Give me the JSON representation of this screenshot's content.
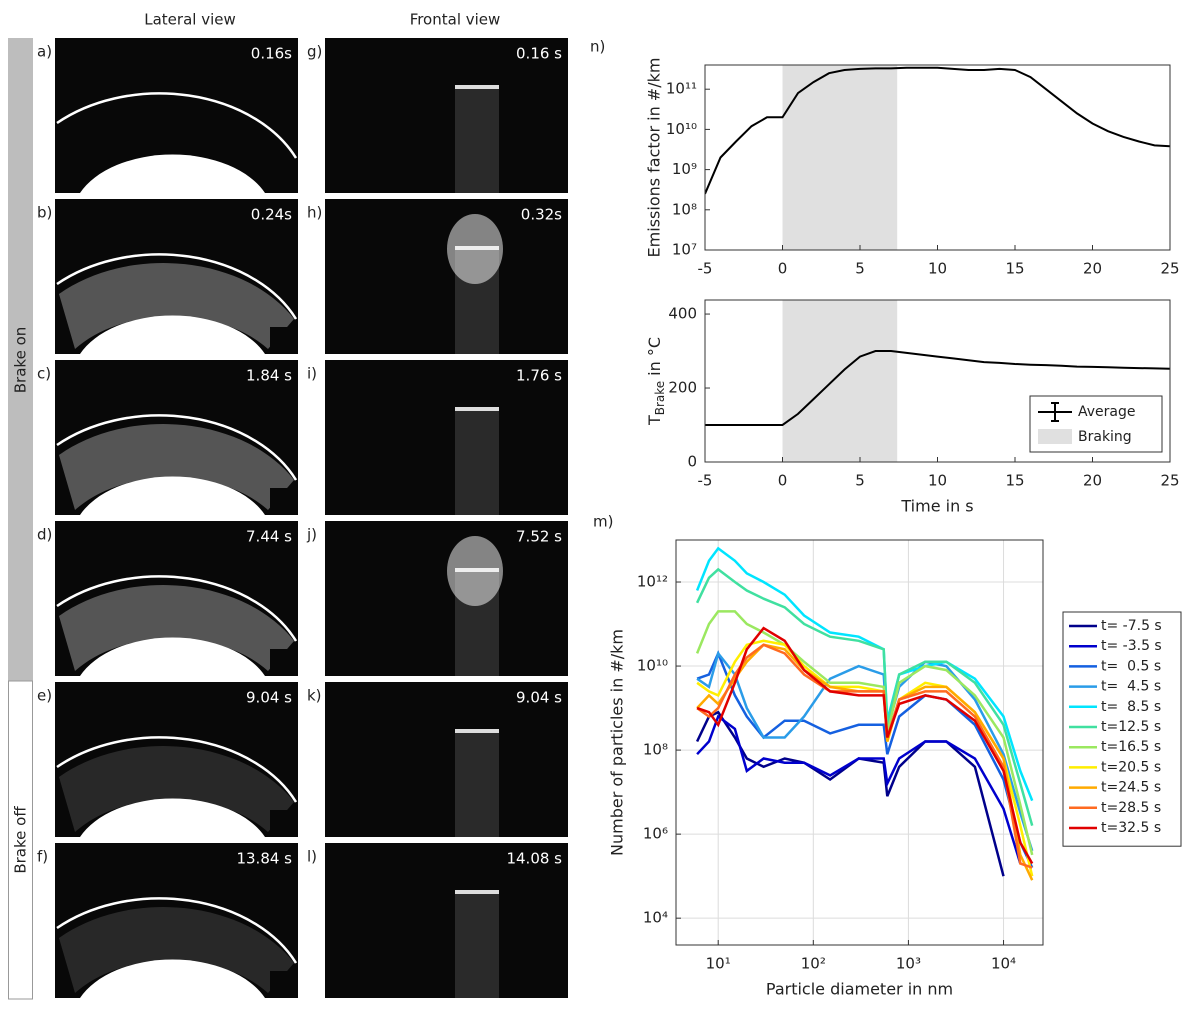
{
  "headers": {
    "lateral": "Lateral view",
    "frontal": "Frontal view"
  },
  "phases": {
    "on": "Brake on",
    "off": "Brake off"
  },
  "lateral_panels": [
    {
      "letter": "a)",
      "time": "0.16s"
    },
    {
      "letter": "b)",
      "time": "0.24s"
    },
    {
      "letter": "c)",
      "time": "1.84 s"
    },
    {
      "letter": "d)",
      "time": "7.44 s"
    },
    {
      "letter": "e)",
      "time": "9.04 s"
    },
    {
      "letter": "f)",
      "time": "13.84 s"
    }
  ],
  "frontal_panels": [
    {
      "letter": "g)",
      "time": "0.16 s"
    },
    {
      "letter": "h)",
      "time": "0.32s"
    },
    {
      "letter": "i)",
      "time": "1.76 s"
    },
    {
      "letter": "j)",
      "time": "7.52 s"
    },
    {
      "letter": "k)",
      "time": "9.04 s"
    },
    {
      "letter": "l)",
      "time": "14.08 s"
    }
  ],
  "panel_letters": {
    "n": "n)",
    "m": "m)"
  },
  "chart_data": [
    {
      "type": "line",
      "ylabel": "Emissions factor in #/km",
      "xlim": [
        -5,
        25
      ],
      "xticks": [
        -5,
        0,
        5,
        10,
        15,
        20,
        25
      ],
      "ylim": [
        10000000.0,
        400000000000.0
      ],
      "yscale": "log",
      "yticks": [
        {
          "value": 10000000.0,
          "label": "10⁷"
        },
        {
          "value": 100000000.0,
          "label": "10⁸"
        },
        {
          "value": 1000000000.0,
          "label": "10⁹"
        },
        {
          "value": 10000000000.0,
          "label": "10¹⁰"
        },
        {
          "value": 100000000000.0,
          "label": "10¹¹"
        }
      ],
      "band": {
        "x": [
          0,
          7.4
        ],
        "color": "#e0e0e0"
      },
      "x": [
        -5,
        -4,
        -3,
        -2,
        -1,
        0,
        1,
        2,
        3,
        4,
        5,
        6,
        7,
        8,
        9,
        10,
        11,
        12,
        13,
        14,
        15,
        16,
        17,
        18,
        19,
        20,
        21,
        22,
        23,
        24,
        25
      ],
      "series": [
        {
          "color": "#000000",
          "values": [
            250000000.0,
            2000000000.0,
            5000000000.0,
            12000000000.0,
            20000000000.0,
            20000000000.0,
            80000000000.0,
            150000000000.0,
            250000000000.0,
            300000000000.0,
            320000000000.0,
            330000000000.0,
            330000000000.0,
            340000000000.0,
            340000000000.0,
            340000000000.0,
            320000000000.0,
            300000000000.0,
            300000000000.0,
            320000000000.0,
            300000000000.0,
            200000000000.0,
            100000000000.0,
            50000000000.0,
            25000000000.0,
            14000000000.0,
            9000000000.0,
            6500000000.0,
            5000000000.0,
            4000000000.0,
            3800000000.0
          ]
        }
      ]
    },
    {
      "type": "line",
      "xlabel": "Time in s",
      "ylabel": {
        "main": "T",
        "sub": "Brake",
        "unit": "in °C"
      },
      "xlim": [
        -5,
        25
      ],
      "xticks": [
        -5,
        0,
        5,
        10,
        15,
        20,
        25
      ],
      "ylim": [
        0,
        438
      ],
      "yticks": [
        0,
        200,
        400
      ],
      "band": {
        "name": "Braking",
        "x": [
          0,
          7.4
        ],
        "color": "#e0e0e0"
      },
      "legend": "lower right",
      "x": [
        -5,
        -4,
        -3,
        -2,
        -1,
        0,
        1,
        2,
        3,
        4,
        5,
        6,
        7,
        8,
        9,
        10,
        11,
        12,
        13,
        14,
        15,
        16,
        17,
        18,
        19,
        20,
        21,
        22,
        23,
        24,
        25
      ],
      "series": [
        {
          "name": "Average",
          "color": "#000000",
          "values": [
            100,
            100,
            100,
            100,
            100,
            100,
            130,
            170,
            210,
            250,
            285,
            300,
            300,
            295,
            290,
            285,
            280,
            275,
            270,
            268,
            265,
            263,
            262,
            260,
            258,
            257,
            256,
            255,
            254,
            253,
            252
          ]
        }
      ]
    },
    {
      "type": "line",
      "xlabel": "Particle diameter in nm",
      "ylabel": "Number of particles in #/km",
      "xscale": "log",
      "yscale": "log",
      "grid": true,
      "xlim": [
        3.6,
        26000
      ],
      "xticks": [
        {
          "value": 10,
          "label": "10¹"
        },
        {
          "value": 100,
          "label": "10²"
        },
        {
          "value": 1000,
          "label": "10³"
        },
        {
          "value": 10000,
          "label": "10⁴"
        }
      ],
      "ylim": [
        2300,
        10000000000000.0
      ],
      "yticks": [
        {
          "value": 10000.0,
          "label": "10⁴"
        },
        {
          "value": 1000000.0,
          "label": "10⁶"
        },
        {
          "value": 100000000.0,
          "label": "10⁸"
        },
        {
          "value": 10000000000.0,
          "label": "10¹⁰"
        },
        {
          "value": 1000000000000.0,
          "label": "10¹²"
        }
      ],
      "legend": "right",
      "x": [
        6,
        8,
        10,
        15,
        20,
        30,
        50,
        80,
        150,
        300,
        550,
        600,
        800,
        1500,
        2500,
        5000,
        10000,
        15000,
        20000
      ],
      "series": [
        {
          "name": "t= -7.5 s",
          "color": "#00008b",
          "values": [
            160000000.0,
            630000000.0,
            800000000.0,
            200000000.0,
            63000000.0,
            40000000.0,
            63000000.0,
            50000000.0,
            20000000.0,
            63000000.0,
            50000000.0,
            8000000.0,
            40000000.0,
            160000000.0,
            160000000.0,
            40000000.0,
            100000.0,
            null,
            null
          ]
        },
        {
          "name": "t= -3.5 s",
          "color": "#0000cd",
          "values": [
            80000000.0,
            160000000.0,
            630000000.0,
            320000000.0,
            32000000.0,
            63000000.0,
            50000000.0,
            50000000.0,
            25000000.0,
            63000000.0,
            63000000.0,
            16000000.0,
            63000000.0,
            160000000.0,
            160000000.0,
            63000000.0,
            4000000.0,
            200000.0,
            null
          ]
        },
        {
          "name": "t=  0.5 s",
          "color": "#1560e0",
          "values": [
            5000000000.0,
            6300000000.0,
            20000000000.0,
            2000000000.0,
            630000000.0,
            200000000.0,
            500000000.0,
            500000000.0,
            250000000.0,
            400000000.0,
            400000000.0,
            80000000.0,
            630000000.0,
            2000000000.0,
            1600000000.0,
            400000000.0,
            20000000.0,
            630000.0,
            160000.0
          ]
        },
        {
          "name": "t=  4.5 s",
          "color": "#2a9ce8",
          "values": [
            5000000000.0,
            3200000000.0,
            20000000000.0,
            6300000000.0,
            1000000000.0,
            200000000.0,
            200000000.0,
            630000000.0,
            5000000000.0,
            10000000000.0,
            6300000000.0,
            320000000.0,
            3200000000.0,
            12600000000.0,
            10000000000.0,
            1600000000.0,
            80000000.0,
            3200000.0,
            400000.0
          ]
        },
        {
          "name": "t=  8.5 s",
          "color": "#00e5ff",
          "values": [
            630000000000.0,
            3200000000000.0,
            6300000000000.0,
            3200000000000.0,
            1600000000000.0,
            1000000000000.0,
            500000000000.0,
            160000000000.0,
            63000000000.0,
            50000000000.0,
            25000000000.0,
            500000000.0,
            6300000000.0,
            10000000000.0,
            12600000000.0,
            5000000000.0,
            630000000.0,
            32000000.0,
            6300000.0
          ]
        },
        {
          "name": "t=12.5 s",
          "color": "#40e0a0",
          "values": [
            320000000000.0,
            1260000000000.0,
            2000000000000.0,
            1000000000000.0,
            630000000000.0,
            400000000000.0,
            250000000000.0,
            100000000000.0,
            50000000000.0,
            40000000000.0,
            25000000000.0,
            400000000.0,
            6300000000.0,
            12600000000.0,
            12600000000.0,
            4000000000.0,
            400000000.0,
            16000000.0,
            1600000.0
          ]
        },
        {
          "name": "t=16.5 s",
          "color": "#9be860",
          "values": [
            20000000000.0,
            100000000000.0,
            200000000000.0,
            200000000000.0,
            100000000000.0,
            63000000000.0,
            32000000000.0,
            12600000000.0,
            4000000000.0,
            4000000000.0,
            3200000000.0,
            250000000.0,
            4000000000.0,
            10000000000.0,
            8000000000.0,
            2000000000.0,
            200000000.0,
            5000000.0,
            320000.0
          ]
        },
        {
          "name": "t=20.5 s",
          "color": "#ffee00",
          "values": [
            4000000000.0,
            2500000000.0,
            2000000000.0,
            12600000000.0,
            32000000000.0,
            40000000000.0,
            32000000000.0,
            10000000000.0,
            3200000000.0,
            3200000000.0,
            2500000000.0,
            160000000.0,
            1600000000.0,
            4000000000.0,
            3200000000.0,
            800000000.0,
            63000000.0,
            1600000.0,
            100000.0
          ]
        },
        {
          "name": "t=24.5 s",
          "color": "#ffaa00",
          "values": [
            1000000000.0,
            2000000000.0,
            1260000000.0,
            5000000000.0,
            12600000000.0,
            32000000000.0,
            25000000000.0,
            8000000000.0,
            3200000000.0,
            2500000000.0,
            2500000000.0,
            160000000.0,
            1600000000.0,
            3200000000.0,
            3200000000.0,
            800000000.0,
            63000000.0,
            320000.0,
            80000.0
          ]
        },
        {
          "name": "t=28.5 s",
          "color": "#ff6a20",
          "values": [
            1000000000.0,
            630000000.0,
            1000000000.0,
            6300000000.0,
            16000000000.0,
            32000000000.0,
            20000000000.0,
            6300000000.0,
            2500000000.0,
            2500000000.0,
            2500000000.0,
            200000000.0,
            1600000000.0,
            2500000000.0,
            2500000000.0,
            630000000.0,
            40000000.0,
            200000.0,
            160000.0
          ]
        },
        {
          "name": "t=32.5 s",
          "color": "#e00000",
          "values": [
            1000000000.0,
            800000000.0,
            400000000.0,
            4000000000.0,
            25000000000.0,
            80000000000.0,
            40000000000.0,
            8000000000.0,
            2500000000.0,
            2000000000.0,
            2000000000.0,
            200000000.0,
            1260000000.0,
            2000000000.0,
            1600000000.0,
            500000000.0,
            32000000.0,
            630000.0,
            200000.0
          ]
        }
      ]
    }
  ]
}
